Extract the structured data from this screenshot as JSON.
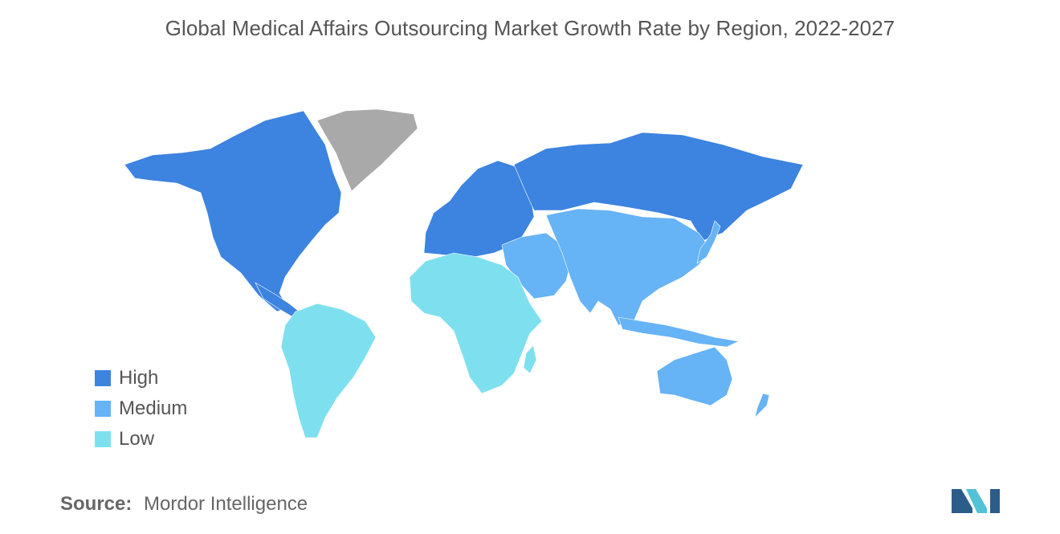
{
  "title": "Global Medical Affairs Outsourcing Market Growth Rate by Region, 2022-2027",
  "colors": {
    "high": "#3d83e0",
    "medium": "#66b3f5",
    "low": "#7ee0ef",
    "no_data": "#a9a9a9"
  },
  "legend": [
    {
      "label": "High",
      "color": "#3d83e0"
    },
    {
      "label": "Medium",
      "color": "#66b3f5"
    },
    {
      "label": "Low",
      "color": "#7ee0ef"
    }
  ],
  "regions": [
    {
      "name": "North America",
      "level": "high"
    },
    {
      "name": "Europe",
      "level": "high"
    },
    {
      "name": "Russia",
      "level": "high"
    },
    {
      "name": "Asia-Pacific",
      "level": "medium"
    },
    {
      "name": "Middle East",
      "level": "medium"
    },
    {
      "name": "Australia",
      "level": "medium"
    },
    {
      "name": "South America",
      "level": "low"
    },
    {
      "name": "Africa",
      "level": "low"
    },
    {
      "name": "Greenland",
      "level": "no_data"
    }
  ],
  "source": {
    "label": "Source:",
    "value": "Mordor Intelligence"
  }
}
